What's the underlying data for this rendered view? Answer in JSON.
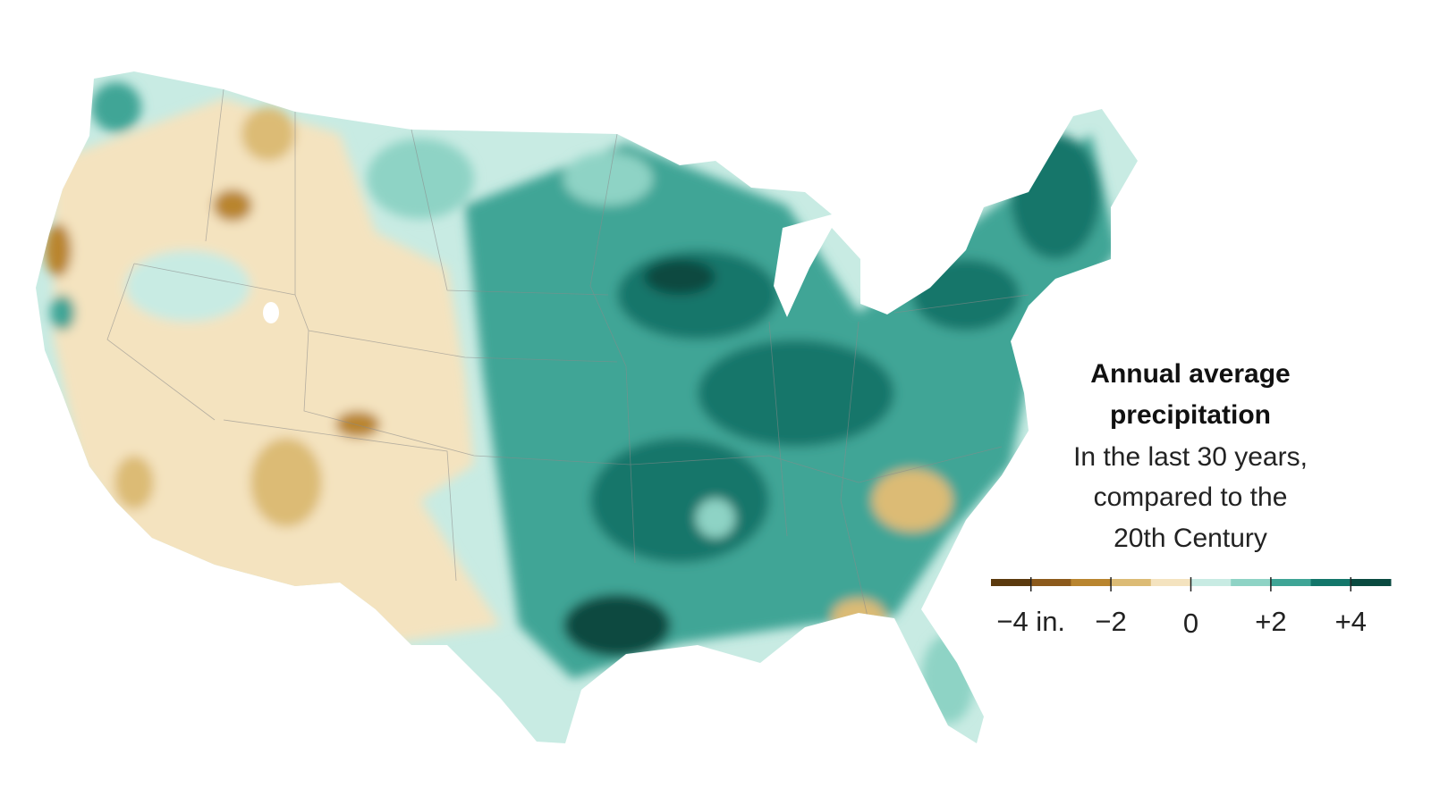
{
  "legend": {
    "title": [
      "Annual average",
      "precipitation"
    ],
    "subtitle": [
      "In the last 30 years,",
      "compared to the",
      "20th Century"
    ],
    "range": [
      -5,
      5
    ],
    "colors": [
      "#5b3a0e",
      "#8c5a1c",
      "#b9852f",
      "#dcbb75",
      "#f4e3bf",
      "#c8ebe3",
      "#8ed3c5",
      "#3fa596",
      "#13766a",
      "#0a4a40"
    ],
    "ticks": [
      {
        "value": -4,
        "label": "−4 in."
      },
      {
        "value": -2,
        "label": "−2"
      },
      {
        "value": 0,
        "label": "0"
      },
      {
        "value": 2,
        "label": "+2"
      },
      {
        "value": 4,
        "label": "+4"
      }
    ]
  }
}
